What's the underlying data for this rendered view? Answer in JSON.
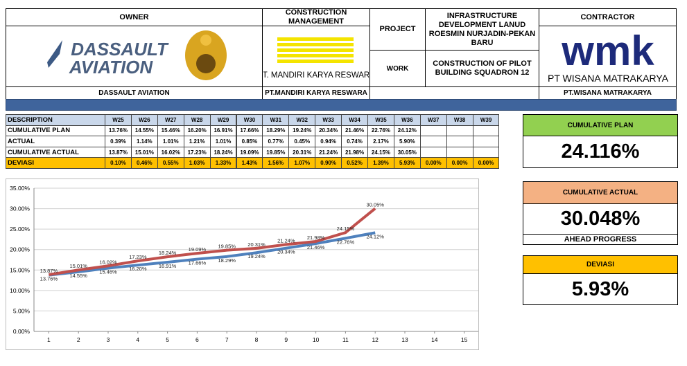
{
  "header": {
    "owner": "OWNER",
    "construction_management": "CONSTRUCTION MANAGEMENT",
    "project_label": "PROJECT",
    "project": "INFRASTRUCTURE DEVELOPMENT LANUD ROESMIN NURJADIN-PEKAN BARU",
    "contractor": "CONTRACTOR",
    "work_label": "WORK",
    "work": "CONSTRUCTION OF PILOT BUILDING SQUADRON 12",
    "owner_logo_line1": "DASSAULT",
    "owner_logo_line2": "AVIATION",
    "cm_logo": "PT. MANDIRI KARYA RESWARA",
    "contractor_logo_mark": "wmk",
    "contractor_logo": "PT WISANA MATRAKARYA",
    "owner_name": "DASSAULT AVIATION",
    "cm_name": "PT.MANDIRI KARYA RESWARA",
    "contractor_name": "PT.WISANA MATRAKARYA"
  },
  "table": {
    "columns": [
      "DESCRIPTION",
      "W25",
      "W26",
      "W27",
      "W28",
      "W29",
      "W30",
      "W31",
      "W32",
      "W33",
      "W34",
      "W35",
      "W36",
      "W37",
      "W38",
      "W39"
    ],
    "rows": [
      {
        "label": "CUMULATIVE PLAN",
        "cells": [
          "13.76%",
          "14.55%",
          "15.46%",
          "16.20%",
          "16.91%",
          "17.66%",
          "18.29%",
          "19.24%",
          "20.34%",
          "21.46%",
          "22.76%",
          "24.12%"
        ]
      },
      {
        "label": "ACTUAL",
        "cells": [
          "0.39%",
          "1.14%",
          "1.01%",
          "1.21%",
          "1.01%",
          "0.85%",
          "0.77%",
          "0.45%",
          "0.94%",
          "0.74%",
          "2.17%",
          "5.90%"
        ]
      },
      {
        "label": "CUMULATIVE ACTUAL",
        "cells": [
          "13.87%",
          "15.01%",
          "16.02%",
          "17.23%",
          "18.24%",
          "19.09%",
          "19.85%",
          "20.31%",
          "21.24%",
          "21.98%",
          "24.15%",
          "30.05%"
        ]
      },
      {
        "label": "DEVIASI",
        "cells": [
          "0.10%",
          "0.46%",
          "0.55%",
          "1.03%",
          "1.33%",
          "1.43%",
          "1.56%",
          "1.07%",
          "0.90%",
          "0.52%",
          "1.39%",
          "5.93%",
          "0.00%",
          "0.00%",
          "0.00%"
        ]
      }
    ]
  },
  "chart_data": {
    "type": "line",
    "x": [
      1,
      2,
      3,
      4,
      5,
      6,
      7,
      8,
      9,
      10,
      11,
      12
    ],
    "series": [
      {
        "name": "CUMULATIVE PLAN",
        "color": "#4f81bd",
        "values": [
          13.76,
          14.55,
          15.46,
          16.2,
          16.91,
          17.66,
          18.29,
          19.24,
          20.34,
          21.46,
          22.76,
          24.12
        ],
        "value_labels": [
          "13.76%",
          "14.55%",
          "15.46%",
          "16.20%",
          "16.91%",
          "17.66%",
          "18.29%",
          "19.24%",
          "20.34%",
          "21.46%",
          "22.76%",
          "24.12%"
        ]
      },
      {
        "name": "CUMULATIVE ACTUAL",
        "color": "#c0504d",
        "values": [
          13.87,
          15.01,
          16.02,
          17.23,
          18.24,
          19.09,
          19.85,
          20.31,
          21.24,
          21.98,
          24.15,
          30.05
        ],
        "value_labels": [
          "13.87%",
          "15.01%",
          "16.02%",
          "17.23%",
          "18.24%",
          "19.09%",
          "19.85%",
          "20.31%",
          "21.24%",
          "21.98%",
          "24.15%",
          "30.05%"
        ]
      }
    ],
    "xlim": [
      0.5,
      15.5
    ],
    "xticks": [
      1,
      2,
      3,
      4,
      5,
      6,
      7,
      8,
      9,
      10,
      11,
      12,
      13,
      14,
      15
    ],
    "ylim": [
      0,
      35
    ],
    "yticks": [
      {
        "value": 0,
        "label": "0.00%"
      },
      {
        "value": 5,
        "label": "5.00%"
      },
      {
        "value": 10,
        "label": "10.00%"
      },
      {
        "value": 15,
        "label": "15.00%"
      },
      {
        "value": 20,
        "label": "20.00%"
      },
      {
        "value": 25,
        "label": "25.00%"
      },
      {
        "value": 30,
        "label": "30.00%"
      },
      {
        "value": 35,
        "label": "35.00%"
      }
    ],
    "grid": true
  },
  "kpis": [
    {
      "title": "CUMULATIVE PLAN",
      "value": "24.116%",
      "color": "#92d050"
    },
    {
      "title": "CUMULATIVE ACTUAL",
      "value": "30.048%",
      "note": "AHEAD PROGRESS",
      "color": "#f4b183"
    },
    {
      "title": "DEVIASI",
      "value": "5.93%",
      "color": "#ffc000"
    }
  ]
}
